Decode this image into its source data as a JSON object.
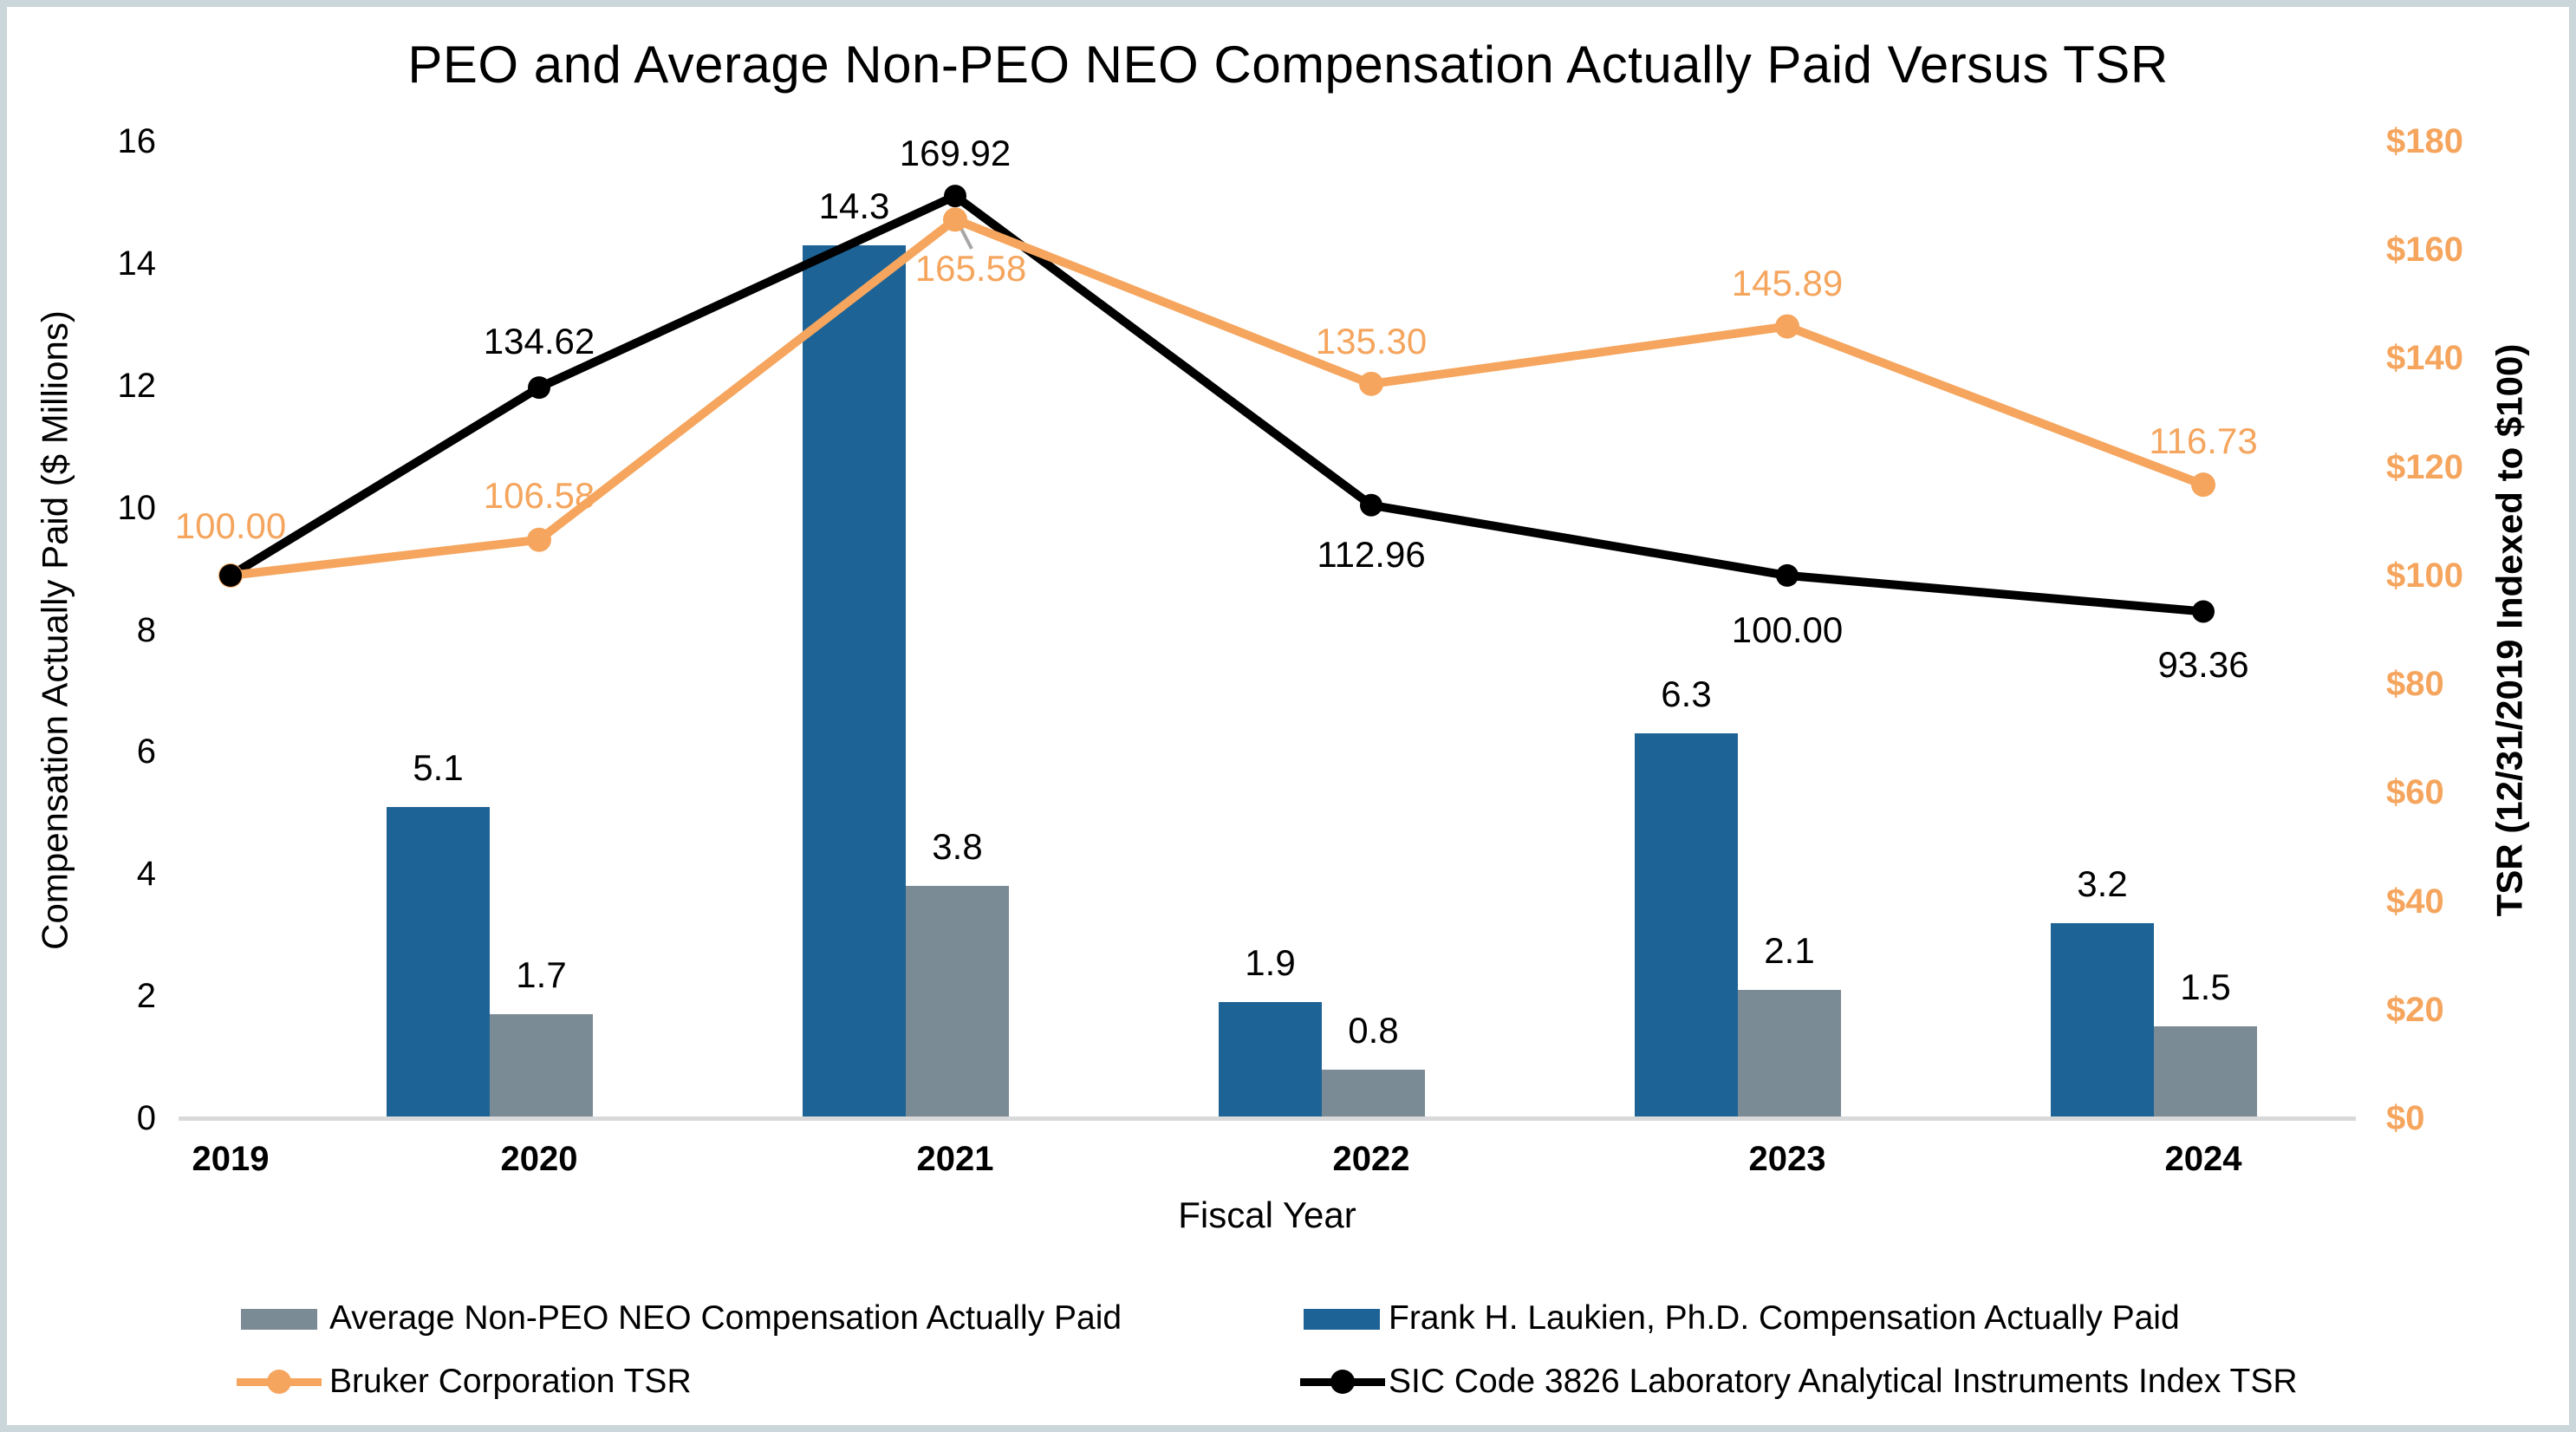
{
  "title": "PEO and Average Non-PEO NEO Compensation Actually Paid Versus TSR",
  "colors": {
    "peo_bar_blue": "#1d6396",
    "neo_bar_gray": "#7b8b96",
    "bruker_orange": "#f5a55d",
    "index_black": "#000000",
    "axis_line_gray": "#d9d9d9",
    "frame_border": "#cbd6db",
    "leader_line_gray": "#a6a6a6"
  },
  "axes": {
    "left": {
      "title": "Compensation Actually Paid ($ Millions)",
      "tick_labels": [
        "16",
        "14",
        "12",
        "10",
        "8",
        "6",
        "4",
        "2",
        "0"
      ],
      "tick_values": [
        16,
        14,
        12,
        10,
        8,
        6,
        4,
        2,
        0
      ],
      "range": [
        0,
        16
      ]
    },
    "right": {
      "title": "TSR (12/31/2019 Indexed to $100)",
      "tick_labels": [
        "$180",
        "$160",
        "$140",
        "$120",
        "$100",
        "$80",
        "$60",
        "$40",
        "$20",
        "$0"
      ],
      "tick_values": [
        180,
        160,
        140,
        120,
        100,
        80,
        60,
        40,
        20,
        0
      ],
      "range": [
        0,
        180
      ]
    },
    "x": {
      "title": "Fiscal Year",
      "categories": [
        "2019",
        "2020",
        "2021",
        "2022",
        "2023",
        "2024"
      ]
    }
  },
  "chart_data": {
    "type": "combo",
    "categories": [
      "2019",
      "2020",
      "2021",
      "2022",
      "2023",
      "2024"
    ],
    "series": [
      {
        "name": "Frank H. Laukien, Ph.D. Compensation Actually Paid",
        "type": "bar",
        "axis": "left",
        "color": "#1d6396",
        "values": [
          null,
          5.1,
          14.3,
          1.9,
          6.3,
          3.2
        ],
        "labels": [
          "",
          "5.1",
          "14.3",
          "1.9",
          "6.3",
          "3.2"
        ]
      },
      {
        "name": "Average Non-PEO NEO Compensation Actually Paid",
        "type": "bar",
        "axis": "left",
        "color": "#7b8b96",
        "values": [
          null,
          1.7,
          3.8,
          0.8,
          2.1,
          1.5
        ],
        "labels": [
          "",
          "1.7",
          "3.8",
          "0.8",
          "2.1",
          "1.5"
        ]
      },
      {
        "name": "Bruker Corporation TSR",
        "type": "line",
        "axis": "right",
        "color": "#f5a55d",
        "values": [
          100.0,
          106.58,
          165.58,
          135.3,
          145.89,
          116.73
        ],
        "labels": [
          "100.00",
          "106.58",
          "165.58",
          "135.30",
          "145.89",
          "116.73"
        ]
      },
      {
        "name": "SIC Code 3826 Laboratory Analytical Instruments Index TSR",
        "type": "line",
        "axis": "right",
        "color": "#000000",
        "values": [
          100.0,
          134.62,
          169.92,
          112.96,
          100.0,
          93.36
        ],
        "labels": [
          "",
          "134.62",
          "169.92",
          "112.96",
          "100.00",
          "93.36"
        ]
      }
    ],
    "legend_position": "bottom",
    "grid": false
  },
  "legend": {
    "items": [
      {
        "label": "Average Non-PEO NEO Compensation Actually Paid",
        "swatch": "bar",
        "color": "#7b8b96"
      },
      {
        "label": "Frank H. Laukien, Ph.D. Compensation Actually Paid",
        "swatch": "bar",
        "color": "#1d6396"
      },
      {
        "label": "Bruker Corporation TSR",
        "swatch": "line",
        "color": "#f5a55d"
      },
      {
        "label": "SIC Code 3826 Laboratory Analytical Instruments Index TSR",
        "swatch": "line",
        "color": "#000000"
      }
    ]
  }
}
